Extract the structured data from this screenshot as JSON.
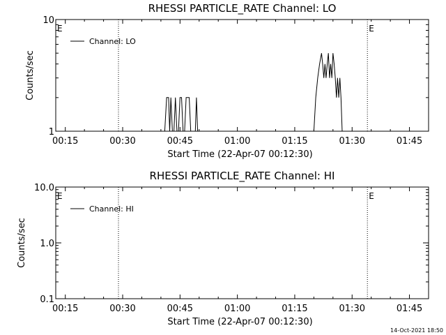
{
  "timestamp": "14-Oct-2021 18:50",
  "x_tick_labels": [
    "00:15",
    "00:30",
    "00:45",
    "01:00",
    "01:15",
    "01:30",
    "01:45"
  ],
  "xlabel": "Start Time (22-Apr-07 00:12:30)",
  "chart_data": [
    {
      "type": "line",
      "title": "RHESSI PARTICLE_RATE Channel: LO",
      "xlabel": "Start Time (22-Apr-07 00:12:30)",
      "ylabel": "Counts/sec",
      "yscale": "log",
      "ylim": [
        1,
        10
      ],
      "y_tick_labels": [
        "1",
        "10"
      ],
      "xlim_minutes": [
        12.5,
        110
      ],
      "legend": "Channel: LO",
      "legend_position": "top-left",
      "event_markers": [
        {
          "label": "E",
          "time_minutes": 12.5
        },
        {
          "label": "E",
          "time_minutes": 94
        }
      ],
      "dotted_lines_minutes": [
        28.9,
        94,
        110
      ],
      "series": [
        {
          "name": "Channel: LO",
          "x": [
            41.0,
            41.5,
            42.0,
            42.3,
            42.6,
            43.0,
            43.4,
            43.8,
            44.2,
            44.6,
            45.0,
            45.4,
            45.8,
            46.2,
            46.6,
            47.0,
            47.4,
            47.8,
            48.2,
            48.6,
            49.0,
            49.3,
            49.6,
            49.9,
            50.2,
            50.5,
            80.0,
            80.5,
            81.0,
            81.5,
            82.0,
            82.3,
            82.6,
            82.9,
            83.2,
            83.5,
            83.8,
            84.1,
            84.4,
            84.7,
            85.0,
            85.3,
            85.6,
            85.9,
            86.2,
            86.5,
            86.8,
            87.1,
            87.4,
            87.7,
            88.0,
            88.3,
            88.6
          ],
          "y": [
            1,
            2,
            2,
            1,
            2,
            1,
            1,
            2,
            1,
            1,
            2,
            2,
            1,
            1,
            2,
            2,
            2,
            1,
            1,
            1,
            1,
            2,
            1,
            1,
            1,
            1,
            1,
            2,
            3,
            4,
            5,
            4,
            3,
            4,
            3,
            4,
            5,
            3,
            4,
            3,
            5,
            4,
            3,
            2,
            3,
            2,
            3,
            2,
            1,
            1,
            1,
            1,
            1
          ]
        }
      ]
    },
    {
      "type": "line",
      "title": "RHESSI PARTICLE_RATE Channel: HI",
      "xlabel": "Start Time (22-Apr-07 00:12:30)",
      "ylabel": "Counts/sec",
      "yscale": "log",
      "ylim": [
        0.1,
        10
      ],
      "y_tick_labels": [
        "0.1",
        "1.0",
        "10.0"
      ],
      "xlim_minutes": [
        12.5,
        110
      ],
      "legend": "Channel: HI",
      "legend_position": "top-left",
      "event_markers": [
        {
          "label": "E",
          "time_minutes": 12.5
        },
        {
          "label": "E",
          "time_minutes": 94
        }
      ],
      "dotted_lines_minutes": [
        28.9,
        94,
        110
      ],
      "series": [
        {
          "name": "Channel: HI",
          "x": [],
          "y": []
        }
      ]
    }
  ]
}
